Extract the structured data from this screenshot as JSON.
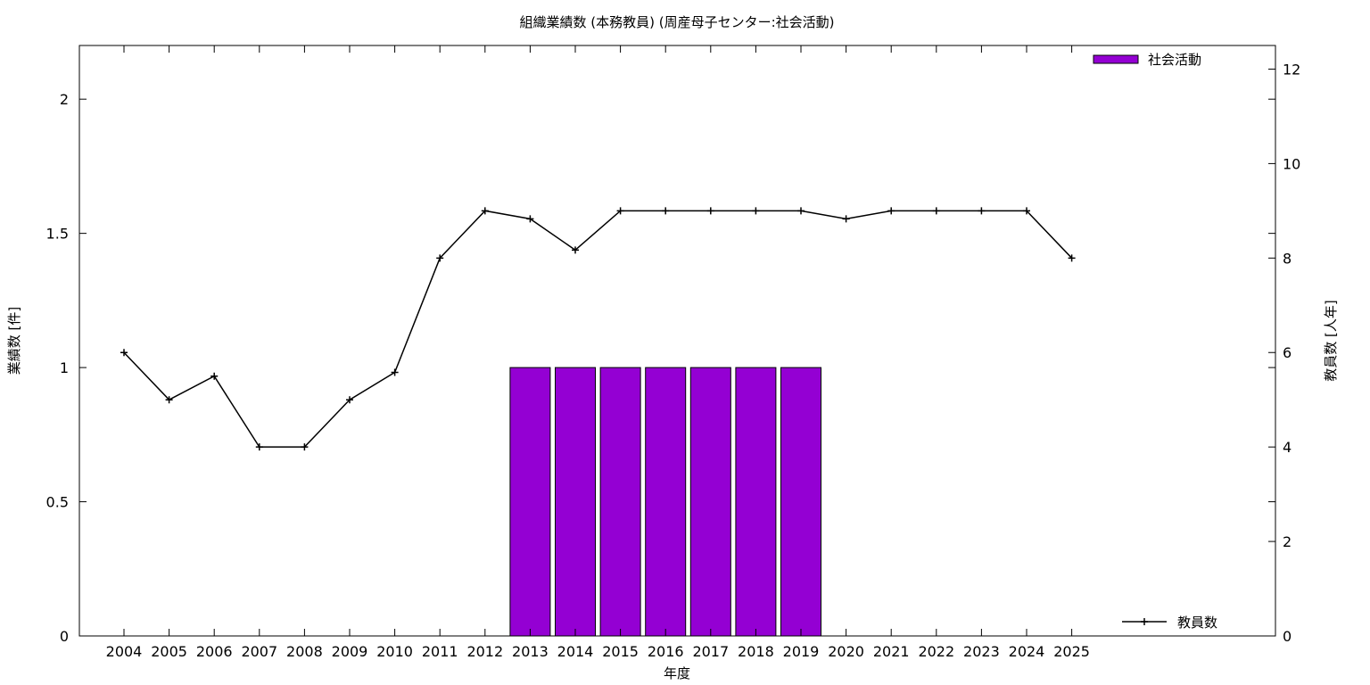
{
  "chart_data": {
    "type": "bar",
    "title": "組織業績数 (本務教員) (周産母子センター:社会活動)",
    "xlabel": "年度",
    "ylabel": "業績数 [件]",
    "y2label": "教員数 [人年]",
    "categories": [
      "2004",
      "2005",
      "2006",
      "2007",
      "2008",
      "2009",
      "2010",
      "2011",
      "2012",
      "2013",
      "2014",
      "2015",
      "2016",
      "2017",
      "2018",
      "2019",
      "2020",
      "2021",
      "2022",
      "2023",
      "2024",
      "2025"
    ],
    "ylim": [
      0,
      2.2
    ],
    "y2lim": [
      0,
      12.5
    ],
    "yticks": [
      "0",
      "0.5",
      "1",
      "1.5",
      "2"
    ],
    "yticks_values": [
      0,
      0.5,
      1,
      1.5,
      2
    ],
    "y2ticks": [
      "0",
      "2",
      "4",
      "6",
      "8",
      "10",
      "12"
    ],
    "y2ticks_values": [
      0,
      2,
      4,
      6,
      8,
      10,
      12
    ],
    "grid": false,
    "series": [
      {
        "name": "社会活動",
        "kind": "bar",
        "axis": "left",
        "color": "#9400D3",
        "values": [
          0,
          0,
          0,
          0,
          0,
          0,
          0,
          0,
          0,
          1,
          1,
          1,
          1,
          1,
          1,
          1,
          0,
          0,
          0,
          0,
          0,
          0
        ]
      },
      {
        "name": "教員数",
        "kind": "line",
        "axis": "right",
        "color": "#000000",
        "values": [
          6,
          5,
          5.5,
          4,
          4,
          5,
          5.58,
          8,
          9,
          8.83,
          8.17,
          9,
          9,
          9,
          9,
          9,
          8.83,
          9,
          9,
          9,
          9,
          8
        ]
      }
    ],
    "legend": [
      {
        "label": "社会活動",
        "position": "top-right"
      },
      {
        "label": "教員数",
        "position": "bottom-right"
      }
    ]
  }
}
